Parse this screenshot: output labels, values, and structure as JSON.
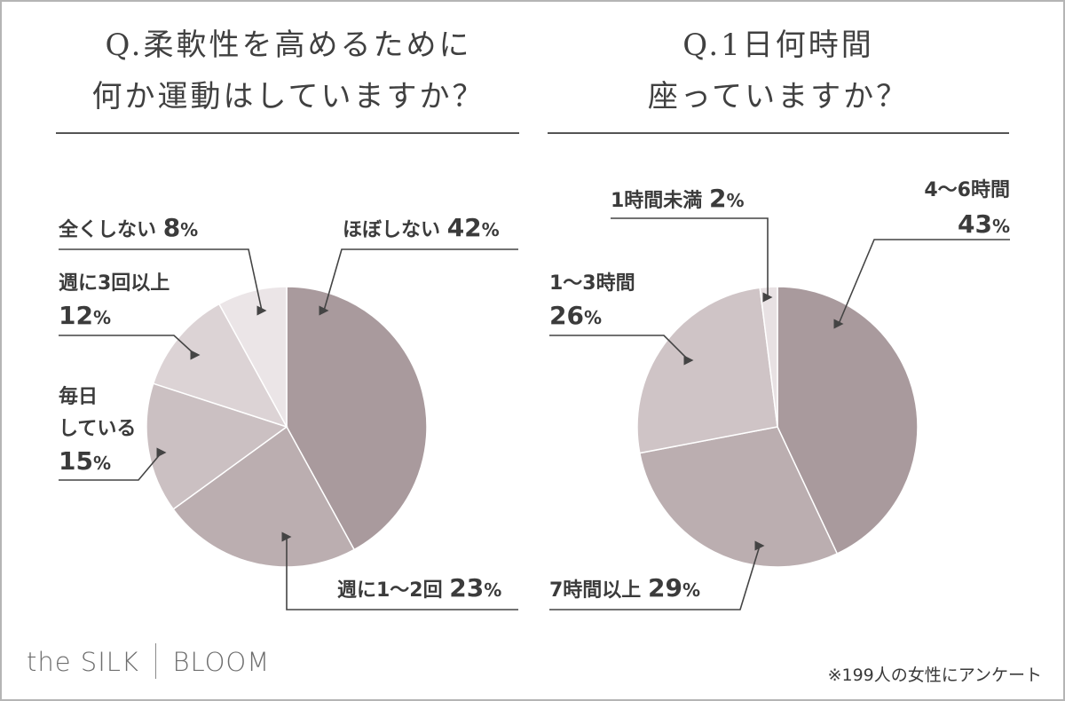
{
  "brand": {
    "left": "the SILK",
    "right": "BLOOM"
  },
  "footnote": "※199人の女性にアンケート",
  "chart_data": [
    {
      "type": "pie",
      "title_lines": [
        "Q.柔軟性を高めるために",
        "何か運動はしていますか？"
      ],
      "slices": [
        {
          "label": "ほぼしない",
          "value": 42,
          "color": "#a99a9d"
        },
        {
          "label": "週に1〜2回",
          "value": 23,
          "color": "#bbaeb0"
        },
        {
          "label": "毎日している",
          "value": 15,
          "color": "#cbc0c2"
        },
        {
          "label": "週に3回以上",
          "value": 12,
          "color": "#dcd3d5"
        },
        {
          "label": "全くしない",
          "value": 8,
          "color": "#ebe5e7"
        }
      ],
      "labels": {
        "hobo": {
          "name": "ほぼしない",
          "num": "42",
          "unit": "%"
        },
        "shu12": {
          "name": "週に1〜2回",
          "num": "23",
          "unit": "%"
        },
        "mainichi": {
          "name1": "毎日",
          "name2": "している",
          "num": "15",
          "unit": "%"
        },
        "shu3": {
          "name": "週に3回以上",
          "num": "12",
          "unit": "%"
        },
        "mattaku": {
          "name": "全くしない",
          "num": "8",
          "unit": "%"
        }
      }
    },
    {
      "type": "pie",
      "title_lines": [
        "Q.1日何時間",
        "座っていますか？"
      ],
      "slices": [
        {
          "label": "4〜6時間",
          "value": 43,
          "color": "#a99a9d"
        },
        {
          "label": "7時間以上",
          "value": 29,
          "color": "#bbaeb0"
        },
        {
          "label": "1〜3時間",
          "value": 26,
          "color": "#cfc4c6"
        },
        {
          "label": "1時間未満",
          "value": 2,
          "color": "#e8e1e3"
        }
      ],
      "labels": {
        "h46": {
          "name": "4〜6時間",
          "num": "43",
          "unit": "%"
        },
        "h7": {
          "name": "7時間以上",
          "num": "29",
          "unit": "%"
        },
        "h13": {
          "name": "1〜3時間",
          "num": "26",
          "unit": "%"
        },
        "h1": {
          "name": "1時間未満",
          "num": "2",
          "unit": "%"
        }
      }
    }
  ]
}
